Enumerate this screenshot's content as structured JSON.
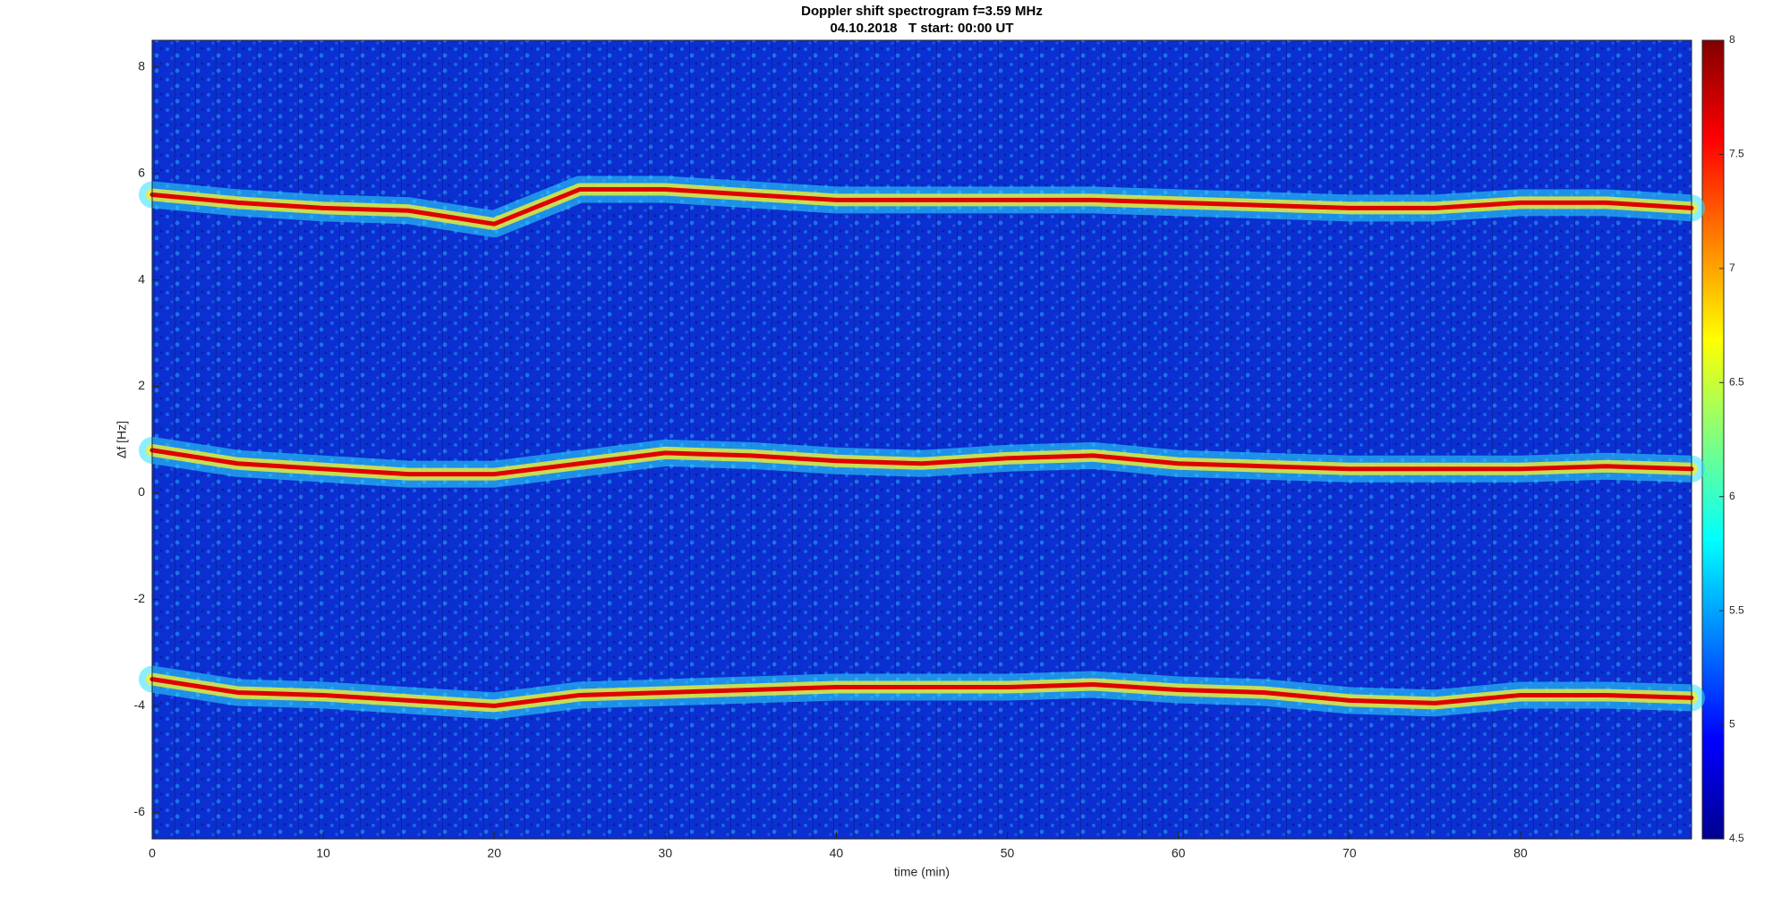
{
  "chart_data": {
    "type": "spectrogram",
    "title": "Doppler shift spectrogram f=3.59 MHz",
    "subtitle": "04.10.2018   T start: 00:00 UT",
    "x_label": "time (min)",
    "y_label": "Δf [Hz]",
    "x": [
      0,
      5,
      10,
      15,
      20,
      25,
      30,
      35,
      40,
      45,
      50,
      55,
      60,
      65,
      70,
      75,
      80,
      85,
      90
    ],
    "series": [
      {
        "color": "#e00000",
        "values": [
          5.6,
          5.45,
          5.35,
          5.3,
          5.05,
          5.7,
          5.7,
          5.6,
          5.5,
          5.5,
          5.5,
          5.5,
          5.45,
          5.4,
          5.35,
          5.35,
          5.45,
          5.45,
          5.35
        ]
      },
      {
        "color": "#e00000",
        "values": [
          0.8,
          0.55,
          0.45,
          0.35,
          0.35,
          0.55,
          0.75,
          0.7,
          0.6,
          0.55,
          0.65,
          0.7,
          0.55,
          0.5,
          0.45,
          0.45,
          0.45,
          0.5,
          0.45
        ]
      },
      {
        "color": "#e00000",
        "values": [
          -3.5,
          -3.75,
          -3.8,
          -3.9,
          -4.0,
          -3.8,
          -3.75,
          -3.7,
          -3.65,
          -3.65,
          -3.65,
          -3.6,
          -3.7,
          -3.75,
          -3.9,
          -3.95,
          -3.8,
          -3.8,
          -3.85
        ]
      }
    ],
    "xlim": [
      0,
      90
    ],
    "xticks": [
      0,
      10,
      20,
      30,
      40,
      50,
      60,
      70,
      80
    ],
    "ylim": [
      -6.5,
      8.5
    ],
    "yticks": [
      -6,
      -4,
      -2,
      0,
      2,
      4,
      6,
      8
    ],
    "colorbar": {
      "colormap": "jet",
      "clim": [
        4.5,
        8
      ],
      "ticks": [
        4.5,
        5,
        5.5,
        6,
        6.5,
        7,
        7.5,
        8
      ]
    }
  }
}
